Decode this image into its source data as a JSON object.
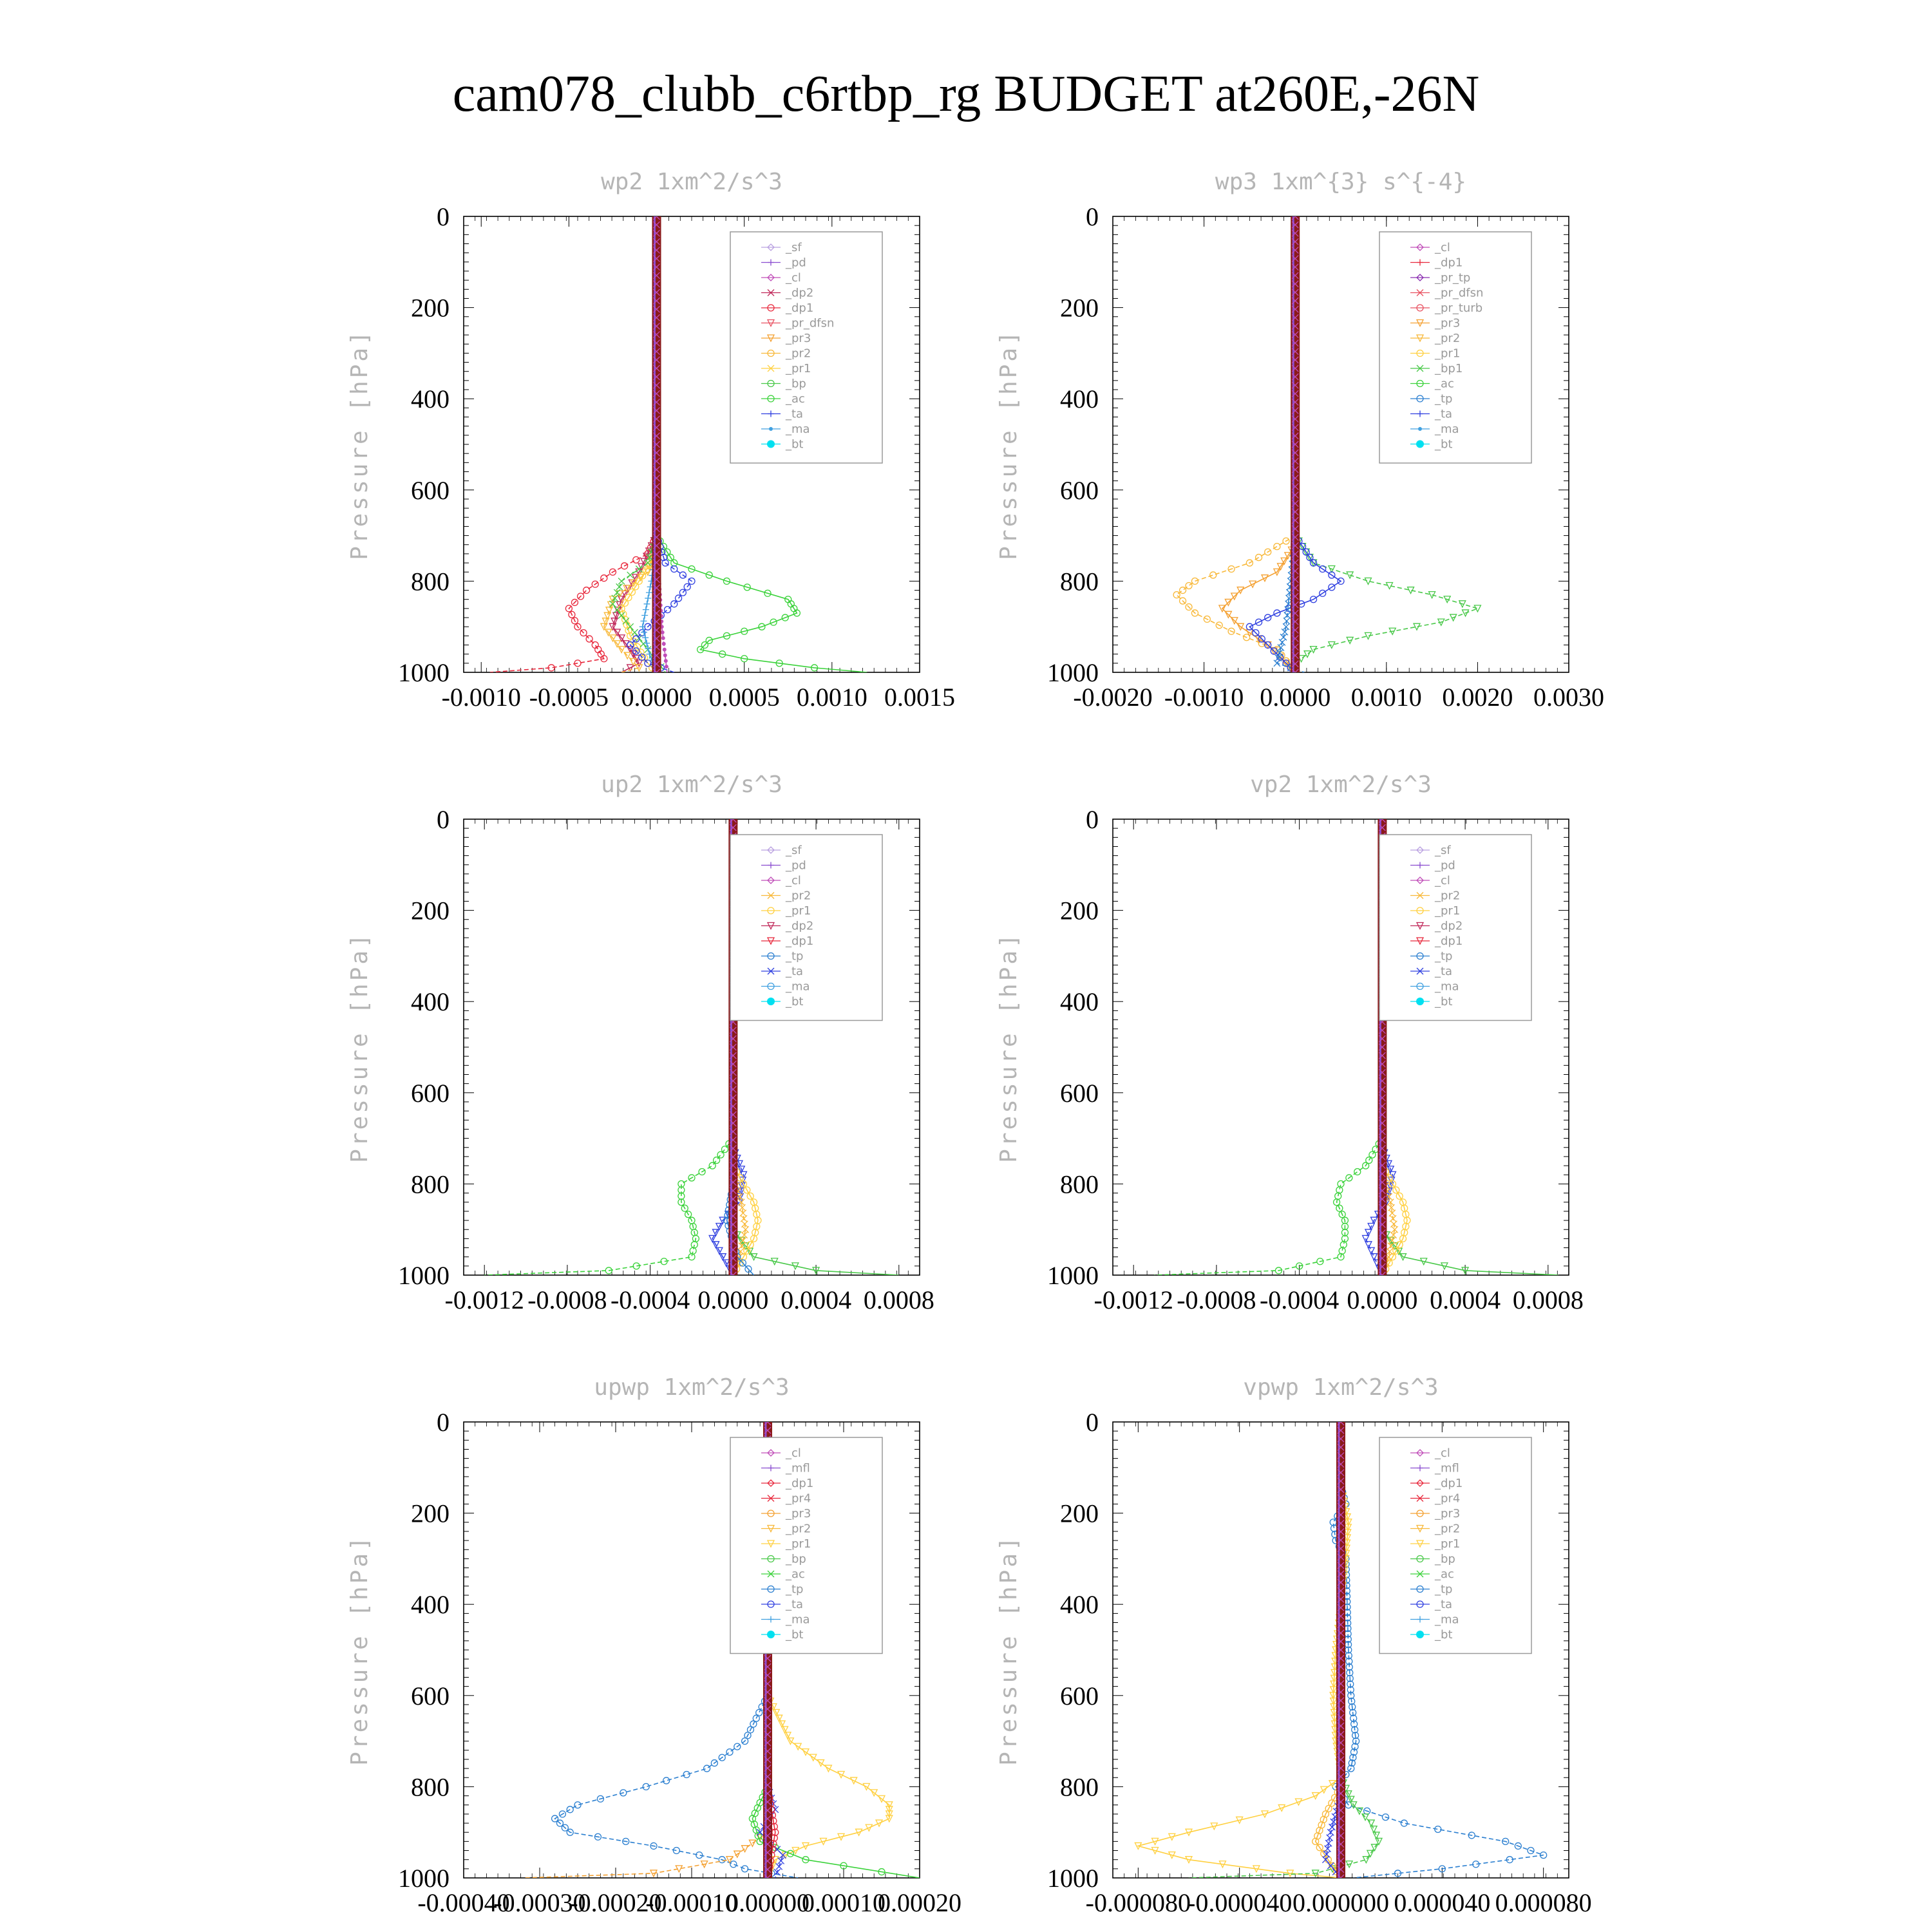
{
  "figure": {
    "title": "cam078_clubb_c6rtbp_rg  BUDGET at260E,-26N"
  },
  "colors": {
    "frame": "#000000",
    "title_gray": "#b5b5b5",
    "legend_text": "#9a9a9a",
    "legend_border": "#9a9a9a",
    "sf": "#b9a0e0",
    "pd": "#8a4dd0",
    "cl": "#c04db8",
    "mfl": "#8a4dd0",
    "dp2": "#c0285a",
    "dp1": "#e8283c",
    "pr_dfsn": "#e85060",
    "pr_tp": "#8a2db0",
    "pr_turb": "#e85060",
    "pr4": "#e8283c",
    "pr3": "#f4a030",
    "pr2": "#f8b838",
    "pr1": "#ffd040",
    "bp": "#48c848",
    "bp1": "#48c848",
    "ac": "#3ad23a",
    "tp": "#2b7fd0",
    "ta": "#3040e0",
    "ma": "#40a0e0",
    "bt": "#00e0f0",
    "center_line": "#8b1a1a"
  },
  "chart_data": [
    {
      "type": "line",
      "title": "wp2   1xm^2/s^3",
      "ylabel": "Pressure [hPa]",
      "ylim": [
        1000,
        0
      ],
      "xlim": [
        -0.0011,
        0.0015
      ],
      "xticks": [
        "-0.0010",
        "-0.0005",
        "0.0000",
        "0.0005",
        "0.0010",
        "0.0015"
      ],
      "xtick_values": [
        -0.001,
        -0.0005,
        0.0,
        0.0005,
        0.001,
        0.0015
      ],
      "yticks": [
        "0",
        "200",
        "400",
        "600",
        "800",
        "1000"
      ],
      "legend_position": "top-right",
      "legend": [
        "_sf",
        "_pd",
        "_cl",
        "_dp2",
        "_dp1",
        "_pr_dfsn",
        "_pr3",
        "_pr2",
        "_pr1",
        "_bp",
        "_ac",
        "_ta",
        "_ma",
        "_bt"
      ],
      "series": [
        {
          "name": "_dp1",
          "color": "dp1",
          "y": [
            700,
            740,
            780,
            820,
            860,
            900,
            940,
            970,
            990,
            1000
          ],
          "x": [
            0,
            -5e-05,
            -0.00025,
            -0.0004,
            -0.0005,
            -0.00045,
            -0.00035,
            -0.0003,
            -0.0006,
            -0.00095
          ]
        },
        {
          "name": "_dp2",
          "color": "dp2",
          "y": [
            700,
            780,
            840,
            900,
            950,
            980,
            1000
          ],
          "x": [
            0,
            -0.0001,
            -0.0002,
            -0.00025,
            -0.00015,
            -0.0001,
            -0.0002
          ]
        },
        {
          "name": "_pr2",
          "color": "pr2",
          "y": [
            720,
            780,
            840,
            900,
            950,
            990,
            1000
          ],
          "x": [
            0,
            -5e-05,
            -0.00025,
            -0.0003,
            -0.0002,
            -0.0001,
            -0.0002
          ]
        },
        {
          "name": "_pr1",
          "color": "pr1",
          "y": [
            740,
            800,
            860,
            920,
            980,
            1000
          ],
          "x": [
            0,
            -0.0001,
            -0.0002,
            -0.00015,
            -5e-05,
            0
          ]
        },
        {
          "name": "_bp",
          "color": "bp",
          "y": [
            700,
            760,
            800,
            850,
            900,
            950,
            1000
          ],
          "x": [
            0,
            -5e-05,
            -0.0002,
            -0.00025,
            -0.00015,
            -5e-05,
            5e-05
          ]
        },
        {
          "name": "_ac",
          "color": "ac",
          "y": [
            700,
            760,
            800,
            840,
            870,
            900,
            930,
            950,
            970,
            990,
            1000
          ],
          "x": [
            0,
            0.0001,
            0.0004,
            0.00075,
            0.0008,
            0.0006,
            0.0003,
            0.00025,
            0.0005,
            0.0009,
            0.0012
          ]
        },
        {
          "name": "_ta",
          "color": "ta",
          "y": [
            700,
            760,
            800,
            850,
            900,
            940,
            980,
            1000
          ],
          "x": [
            0,
            5e-05,
            0.0002,
            0.0001,
            -5e-05,
            -0.00015,
            -5e-05,
            0.0001
          ]
        },
        {
          "name": "_ma",
          "color": "ma",
          "y": [
            700,
            800,
            900,
            960,
            1000
          ],
          "x": [
            0,
            -3e-05,
            -8e-05,
            -4e-05,
            0.0
          ]
        },
        {
          "name": "_cl",
          "color": "cl",
          "y": [
            700,
            900,
            1000
          ],
          "x": [
            0,
            3e-05,
            6e-05
          ]
        }
      ]
    },
    {
      "type": "line",
      "title": "wp3   1xm^{3} s^{-4}",
      "ylabel": "Pressure [hPa]",
      "ylim": [
        1000,
        0
      ],
      "xlim": [
        -0.002,
        0.003
      ],
      "xticks": [
        "-0.0020",
        "-0.0010",
        "0.0000",
        "0.0010",
        "0.0020",
        "0.0030"
      ],
      "xtick_values": [
        -0.002,
        -0.001,
        0.0,
        0.001,
        0.002,
        0.003
      ],
      "yticks": [
        "0",
        "200",
        "400",
        "600",
        "800",
        "1000"
      ],
      "legend_position": "top-right",
      "legend": [
        "_cl",
        "_dp1",
        "_pr_tp",
        "_pr_dfsn",
        "_pr_turb",
        "_pr3",
        "_pr2",
        "_pr1",
        "_bp1",
        "_ac",
        "_tp",
        "_ta",
        "_ma",
        "_bt"
      ],
      "series": [
        {
          "name": "_pr2",
          "color": "pr2",
          "y": [
            700,
            760,
            800,
            830,
            870,
            910,
            950,
            1000
          ],
          "x": [
            0,
            -0.0005,
            -0.0011,
            -0.0013,
            -0.0011,
            -0.0007,
            -0.0002,
            0
          ]
        },
        {
          "name": "_pr3",
          "color": "pr3",
          "y": [
            720,
            780,
            820,
            860,
            900,
            940,
            980,
            1000
          ],
          "x": [
            0,
            -0.0002,
            -0.0006,
            -0.0008,
            -0.0006,
            -0.0003,
            -0.0001,
            0
          ]
        },
        {
          "name": "_bp1",
          "color": "bp1",
          "y": [
            700,
            760,
            800,
            830,
            860,
            890,
            920,
            950,
            980,
            1000
          ],
          "x": [
            0,
            0.0002,
            0.0008,
            0.0015,
            0.002,
            0.0016,
            0.0008,
            0.0002,
            0,
            0
          ]
        },
        {
          "name": "_ta",
          "color": "ta",
          "y": [
            700,
            760,
            800,
            840,
            870,
            900,
            940,
            980,
            1000
          ],
          "x": [
            0,
            0.0002,
            0.0005,
            0.0002,
            -0.0002,
            -0.0005,
            -0.0003,
            -0.0001,
            0
          ]
        },
        {
          "name": "_tp",
          "color": "tp",
          "y": [
            700,
            800,
            900,
            980,
            1000
          ],
          "x": [
            0,
            -5e-05,
            -0.0001,
            -0.0002,
            0.0001
          ]
        }
      ]
    },
    {
      "type": "line",
      "title": "up2   1xm^2/s^3",
      "ylabel": "Pressure [hPa]",
      "ylim": [
        1000,
        0
      ],
      "xlim": [
        -0.0013,
        0.0009
      ],
      "xticks": [
        "-0.0012",
        "-0.0008",
        "-0.0004",
        "0.0000",
        "0.0004",
        "0.0008"
      ],
      "xtick_values": [
        -0.0012,
        -0.0008,
        -0.0004,
        0.0,
        0.0004,
        0.0008
      ],
      "yticks": [
        "0",
        "200",
        "400",
        "600",
        "800",
        "1000"
      ],
      "legend_position": "top-right",
      "legend": [
        "_sf",
        "_pd",
        "_cl",
        "_pr2",
        "_pr1",
        "_dp2",
        "_dp1",
        "_tp",
        "_ta",
        "_ma",
        "_bt"
      ],
      "series": [
        {
          "name": "_dp1",
          "color": "ac",
          "y": [
            700,
            760,
            800,
            840,
            880,
            920,
            960,
            990,
            1000
          ],
          "x": [
            0,
            -0.0001,
            -0.00025,
            -0.00025,
            -0.0002,
            -0.00018,
            -0.0002,
            -0.0006,
            -0.0012
          ]
        },
        {
          "name": "_dp2",
          "color": "bp",
          "y": [
            900,
            960,
            990,
            1000
          ],
          "x": [
            0,
            0.0001,
            0.0004,
            0.0008
          ]
        },
        {
          "name": "_ta",
          "color": "ta",
          "y": [
            720,
            780,
            840,
            880,
            920,
            960,
            1000
          ],
          "x": [
            0,
            5e-05,
            3e-05,
            -5e-05,
            -0.0001,
            -5e-05,
            0
          ]
        },
        {
          "name": "_pr1",
          "color": "pr1",
          "y": [
            760,
            800,
            840,
            880,
            920,
            960,
            1000
          ],
          "x": [
            0,
            5e-05,
            0.0001,
            0.00012,
            0.0001,
            5e-05,
            0
          ]
        },
        {
          "name": "_pr2",
          "color": "pr2",
          "y": [
            780,
            840,
            900,
            960,
            1000
          ],
          "x": [
            0,
            4e-05,
            6e-05,
            3e-05,
            0
          ]
        },
        {
          "name": "_tp",
          "color": "tp",
          "y": [
            800,
            880,
            960,
            1000
          ],
          "x": [
            0,
            -3e-05,
            2e-05,
            0.0001
          ]
        }
      ]
    },
    {
      "type": "line",
      "title": "vp2   1xm^2/s^3",
      "ylabel": "Pressure [hPa]",
      "ylim": [
        1000,
        0
      ],
      "xlim": [
        -0.0013,
        0.0009
      ],
      "xticks": [
        "-0.0012",
        "-0.0008",
        "-0.0004",
        "0.0000",
        "0.0004",
        "0.0008"
      ],
      "xtick_values": [
        -0.0012,
        -0.0008,
        -0.0004,
        0.0,
        0.0004,
        0.0008
      ],
      "yticks": [
        "0",
        "200",
        "400",
        "600",
        "800",
        "1000"
      ],
      "legend_position": "top-right",
      "legend": [
        "_sf",
        "_pd",
        "_cl",
        "_pr2",
        "_pr1",
        "_dp2",
        "_dp1",
        "_tp",
        "_ta",
        "_ma",
        "_bt"
      ],
      "series": [
        {
          "name": "_dp1",
          "color": "ac",
          "y": [
            700,
            760,
            800,
            840,
            880,
            920,
            960,
            990,
            1000
          ],
          "x": [
            0,
            -8e-05,
            -0.0002,
            -0.00022,
            -0.00018,
            -0.00018,
            -0.0002,
            -0.0005,
            -0.0011
          ]
        },
        {
          "name": "_dp2",
          "color": "bp",
          "y": [
            900,
            960,
            990,
            1000
          ],
          "x": [
            0,
            0.0001,
            0.0004,
            0.00085
          ]
        },
        {
          "name": "_ta",
          "color": "ta",
          "y": [
            720,
            780,
            840,
            880,
            920,
            960,
            1000
          ],
          "x": [
            0,
            5e-05,
            2e-05,
            -4e-05,
            -8e-05,
            -4e-05,
            0
          ]
        },
        {
          "name": "_pr1",
          "color": "pr1",
          "y": [
            760,
            800,
            840,
            880,
            920,
            960,
            1000
          ],
          "x": [
            0,
            5e-05,
            0.0001,
            0.00012,
            0.0001,
            5e-05,
            0
          ]
        },
        {
          "name": "_pr2",
          "color": "pr2",
          "y": [
            780,
            840,
            900,
            960,
            1000
          ],
          "x": [
            0,
            4e-05,
            6e-05,
            3e-05,
            0
          ]
        }
      ]
    },
    {
      "type": "line",
      "title": "upwp   1xm^2/s^3",
      "ylabel": "Pressure [hPa]",
      "ylim": [
        1000,
        0
      ],
      "xlim": [
        -0.0004,
        0.0002
      ],
      "xticks": [
        "-0.00040",
        "-0.00030",
        "-0.00020",
        "-0.00010",
        "0.00000",
        "0.00010",
        "0.00020"
      ],
      "xtick_values": [
        -0.0004,
        -0.0003,
        -0.0002,
        -0.0001,
        0.0,
        0.0001,
        0.0002
      ],
      "yticks": [
        "0",
        "200",
        "400",
        "600",
        "800",
        "1000"
      ],
      "legend_position": "top-right",
      "legend": [
        "_cl",
        "_mfl",
        "_dp1",
        "_pr4",
        "_pr3",
        "_pr2",
        "_pr1",
        "_bp",
        "_ac",
        "_tp",
        "_ta",
        "_ma",
        "_bt"
      ],
      "series": [
        {
          "name": "_tp",
          "color": "tp",
          "y": [
            600,
            700,
            760,
            800,
            840,
            870,
            900,
            930,
            960,
            980,
            1000
          ],
          "x": [
            0,
            -3e-05,
            -8e-05,
            -0.00016,
            -0.00025,
            -0.00028,
            -0.00026,
            -0.00015,
            -6e-05,
            -3e-05,
            4e-05
          ]
        },
        {
          "name": "_pr1",
          "color": "pr1",
          "y": [
            600,
            700,
            760,
            800,
            840,
            870,
            900,
            930,
            960,
            1000
          ],
          "x": [
            0,
            3e-05,
            8e-05,
            0.00013,
            0.00016,
            0.00016,
            0.00012,
            5e-05,
            1e-05,
            0
          ]
        },
        {
          "name": "_pr2",
          "color": "pr3",
          "y": [
            900,
            960,
            990,
            1000
          ],
          "x": [
            0,
            -5e-05,
            -0.00015,
            -0.00032
          ]
        },
        {
          "name": "_ac",
          "color": "ac",
          "y": [
            800,
            870,
            920,
            960,
            1000
          ],
          "x": [
            0,
            -2e-05,
            -1e-05,
            5e-05,
            0.0002
          ]
        },
        {
          "name": "_ta",
          "color": "ta",
          "y": [
            800,
            850,
            900,
            950,
            1000
          ],
          "x": [
            0,
            1e-05,
            -1e-05,
            2e-05,
            1e-05
          ]
        },
        {
          "name": "_pr4",
          "color": "pr4",
          "y": [
            800,
            900,
            1000
          ],
          "x": [
            0,
            1e-05,
            0
          ]
        }
      ]
    },
    {
      "type": "line",
      "title": "vpwp   1xm^2/s^3",
      "ylabel": "Pressure [hPa]",
      "ylim": [
        1000,
        0
      ],
      "xlim": [
        -9e-05,
        9e-05
      ],
      "xticks": [
        "-0.000080",
        "-0.000040",
        "0.000000",
        "0.000040",
        "0.000080"
      ],
      "xtick_values": [
        -8e-05,
        -4e-05,
        0.0,
        4e-05,
        8e-05
      ],
      "yticks": [
        "0",
        "200",
        "400",
        "600",
        "800",
        "1000"
      ],
      "legend_position": "top-right",
      "legend": [
        "_cl",
        "_mfl",
        "_dp1",
        "_pr4",
        "_pr3",
        "_pr2",
        "_pr1",
        "_bp",
        "_ac",
        "_tp",
        "_ta",
        "_ma",
        "_bt"
      ],
      "series": [
        {
          "name": "_tp",
          "color": "tp",
          "y": [
            140,
            180,
            220,
            260,
            300,
            500,
            600,
            700,
            760,
            800,
            840,
            880,
            920,
            950,
            980,
            1000
          ],
          "x": [
            0,
            2e-06,
            -3e-06,
            -2e-06,
            2e-06,
            3e-06,
            4e-06,
            6e-06,
            4e-06,
            -2e-06,
            3e-06,
            2.5e-05,
            6.5e-05,
            8e-05,
            4e-05,
            5e-06
          ]
        },
        {
          "name": "_pr1",
          "color": "pr1",
          "y": [
            140,
            220,
            300,
            500,
            600,
            700,
            780,
            820,
            860,
            900,
            930,
            960,
            990,
            1000
          ],
          "x": [
            0,
            3e-06,
            2e-06,
            -2e-06,
            -3e-06,
            -2e-06,
            0,
            -1e-05,
            -3e-05,
            -6e-05,
            -8e-05,
            -6e-05,
            -2e-05,
            0
          ]
        },
        {
          "name": "_bp",
          "color": "bp",
          "y": [
            780,
            840,
            880,
            920,
            960,
            990,
            1000
          ],
          "x": [
            0,
            5e-06,
            1.2e-05,
            1.5e-05,
            1e-05,
            -1e-05,
            -6e-05
          ]
        },
        {
          "name": "_pr2",
          "color": "pr2",
          "y": [
            800,
            860,
            920,
            960,
            1000
          ],
          "x": [
            0,
            -6e-06,
            -1e-05,
            -5e-06,
            0
          ]
        },
        {
          "name": "_ta",
          "color": "ta",
          "y": [
            820,
            900,
            960,
            1000
          ],
          "x": [
            0,
            -4e-06,
            -6e-06,
            0
          ]
        }
      ]
    }
  ]
}
